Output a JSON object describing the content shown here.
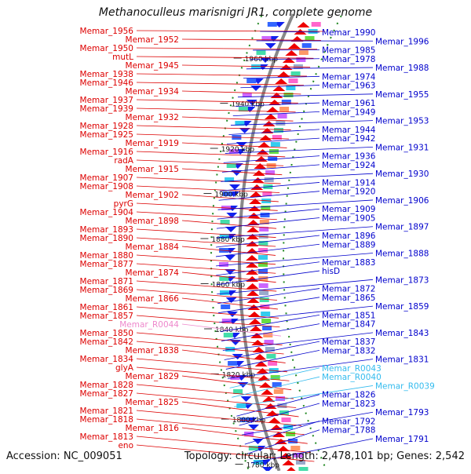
{
  "title": "Methanoculleus marisnigri JR1, complete genome",
  "footer": {
    "accession": "Accession: NC_009051",
    "summary": "Topology: circular; Length: 2,478,101 bp; Genes: 2,542"
  },
  "colors": {
    "left_label": "#dd0000",
    "right_label": "#0000cc",
    "pink_label": "#ee88cc",
    "cyan_label": "#33bbee",
    "backbone": "#888888",
    "tick": "#228822"
  },
  "kbp_marks": [
    "1960 kbp",
    "1940 kbp",
    "1920 kbp",
    "1900 kbp",
    "1880 kbp",
    "1860 kbp",
    "1840 kbp",
    "1820 kbp",
    "1800 kbp",
    "1780 kbp"
  ],
  "left_labels": [
    {
      "text": "Memar_1956",
      "color": "red"
    },
    {
      "text": "Memar_1952",
      "color": "red"
    },
    {
      "text": "Memar_1950",
      "color": "red"
    },
    {
      "text": "mutL",
      "color": "red"
    },
    {
      "text": "Memar_1945",
      "color": "red"
    },
    {
      "text": "Memar_1938",
      "color": "red"
    },
    {
      "text": "Memar_1946",
      "color": "red"
    },
    {
      "text": "Memar_1934",
      "color": "red"
    },
    {
      "text": "Memar_1937",
      "color": "red"
    },
    {
      "text": "Memar_1939",
      "color": "red"
    },
    {
      "text": "Memar_1932",
      "color": "red"
    },
    {
      "text": "Memar_1928",
      "color": "red"
    },
    {
      "text": "Memar_1925",
      "color": "red"
    },
    {
      "text": "Memar_1919",
      "color": "red"
    },
    {
      "text": "Memar_1916",
      "color": "red"
    },
    {
      "text": "radA",
      "color": "red"
    },
    {
      "text": "Memar_1915",
      "color": "red"
    },
    {
      "text": "Memar_1907",
      "color": "red"
    },
    {
      "text": "Memar_1908",
      "color": "red"
    },
    {
      "text": "Memar_1902",
      "color": "red"
    },
    {
      "text": "pyrG",
      "color": "red"
    },
    {
      "text": "Memar_1904",
      "color": "red"
    },
    {
      "text": "Memar_1898",
      "color": "red"
    },
    {
      "text": "Memar_1893",
      "color": "red"
    },
    {
      "text": "Memar_1890",
      "color": "red"
    },
    {
      "text": "Memar_1884",
      "color": "red"
    },
    {
      "text": "Memar_1880",
      "color": "red"
    },
    {
      "text": "Memar_1877",
      "color": "red"
    },
    {
      "text": "Memar_1874",
      "color": "red"
    },
    {
      "text": "Memar_1871",
      "color": "red"
    },
    {
      "text": "Memar_1869",
      "color": "red"
    },
    {
      "text": "Memar_1866",
      "color": "red"
    },
    {
      "text": "Memar_1861",
      "color": "red"
    },
    {
      "text": "Memar_1857",
      "color": "red"
    },
    {
      "text": "Memar_R0044",
      "color": "pink"
    },
    {
      "text": "Memar_1850",
      "color": "red"
    },
    {
      "text": "Memar_1842",
      "color": "red"
    },
    {
      "text": "Memar_1838",
      "color": "red"
    },
    {
      "text": "Memar_1834",
      "color": "red"
    },
    {
      "text": "glyA",
      "color": "red"
    },
    {
      "text": "Memar_1829",
      "color": "red"
    },
    {
      "text": "Memar_1828",
      "color": "red"
    },
    {
      "text": "Memar_1827",
      "color": "red"
    },
    {
      "text": "Memar_1825",
      "color": "red"
    },
    {
      "text": "Memar_1821",
      "color": "red"
    },
    {
      "text": "Memar_1818",
      "color": "red"
    },
    {
      "text": "Memar_1816",
      "color": "red"
    },
    {
      "text": "Memar_1813",
      "color": "red"
    },
    {
      "text": "eno",
      "color": "red"
    }
  ],
  "right_labels": [
    {
      "text": "Memar_1990",
      "color": "blue"
    },
    {
      "text": "Memar_1996",
      "color": "blue"
    },
    {
      "text": "Memar_1985",
      "color": "blue"
    },
    {
      "text": "Memar_1978",
      "color": "blue"
    },
    {
      "text": "Memar_1988",
      "color": "blue"
    },
    {
      "text": "Memar_1974",
      "color": "blue"
    },
    {
      "text": "Memar_1963",
      "color": "blue"
    },
    {
      "text": "Memar_1955",
      "color": "blue"
    },
    {
      "text": "Memar_1961",
      "color": "blue"
    },
    {
      "text": "Memar_1949",
      "color": "blue"
    },
    {
      "text": "Memar_1953",
      "color": "blue"
    },
    {
      "text": "Memar_1944",
      "color": "blue"
    },
    {
      "text": "Memar_1942",
      "color": "blue"
    },
    {
      "text": "Memar_1931",
      "color": "blue"
    },
    {
      "text": "Memar_1936",
      "color": "blue"
    },
    {
      "text": "Memar_1924",
      "color": "blue"
    },
    {
      "text": "Memar_1930",
      "color": "blue"
    },
    {
      "text": "Memar_1914",
      "color": "blue"
    },
    {
      "text": "Memar_1920",
      "color": "blue"
    },
    {
      "text": "Memar_1906",
      "color": "blue"
    },
    {
      "text": "Memar_1909",
      "color": "blue"
    },
    {
      "text": "Memar_1905",
      "color": "blue"
    },
    {
      "text": "Memar_1897",
      "color": "blue"
    },
    {
      "text": "Memar_1896",
      "color": "blue"
    },
    {
      "text": "Memar_1889",
      "color": "blue"
    },
    {
      "text": "Memar_1888",
      "color": "blue"
    },
    {
      "text": "Memar_1883",
      "color": "blue"
    },
    {
      "text": "hisD",
      "color": "blue"
    },
    {
      "text": "Memar_1873",
      "color": "blue"
    },
    {
      "text": "Memar_1872",
      "color": "blue"
    },
    {
      "text": "Memar_1865",
      "color": "blue"
    },
    {
      "text": "Memar_1859",
      "color": "blue"
    },
    {
      "text": "Memar_1851",
      "color": "blue"
    },
    {
      "text": "Memar_1847",
      "color": "blue"
    },
    {
      "text": "Memar_1843",
      "color": "blue"
    },
    {
      "text": "Memar_1837",
      "color": "blue"
    },
    {
      "text": "Memar_1832",
      "color": "blue"
    },
    {
      "text": "Memar_1831",
      "color": "blue"
    },
    {
      "text": "Memar_R0043",
      "color": "cyan"
    },
    {
      "text": "Memar_R0040",
      "color": "cyan"
    },
    {
      "text": "Memar_R0039",
      "color": "cyan"
    },
    {
      "text": "Memar_1826",
      "color": "blue"
    },
    {
      "text": "Memar_1823",
      "color": "blue"
    },
    {
      "text": "Memar_1793",
      "color": "blue"
    },
    {
      "text": "Memar_1792",
      "color": "blue"
    },
    {
      "text": "Memar_1788",
      "color": "blue"
    },
    {
      "text": "Memar_1791",
      "color": "blue"
    }
  ]
}
